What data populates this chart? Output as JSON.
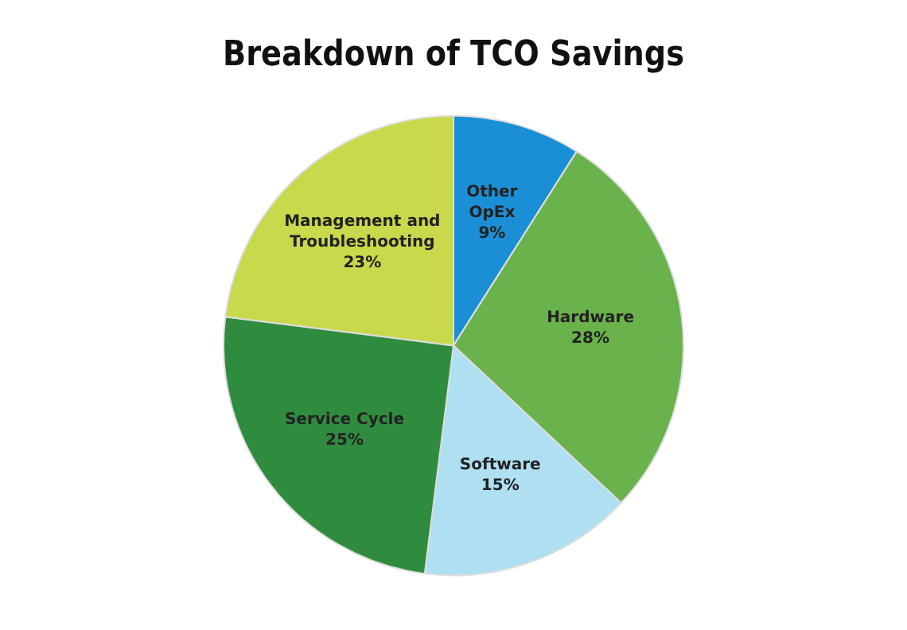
{
  "chart_data": {
    "type": "pie",
    "title": "Breakdown of TCO Savings",
    "categories": [
      "Other OpEx",
      "Hardware",
      "Software",
      "Service Cycle",
      "Management and Troubleshooting"
    ],
    "values": [
      9,
      28,
      15,
      25,
      23
    ],
    "colors": [
      "#1a8fd6",
      "#6ab24c",
      "#aee0f2",
      "#2f8c3f",
      "#c8d94c"
    ],
    "value_labels": [
      "9%",
      "28%",
      "15%",
      "25%",
      "23%"
    ],
    "legend": false
  }
}
